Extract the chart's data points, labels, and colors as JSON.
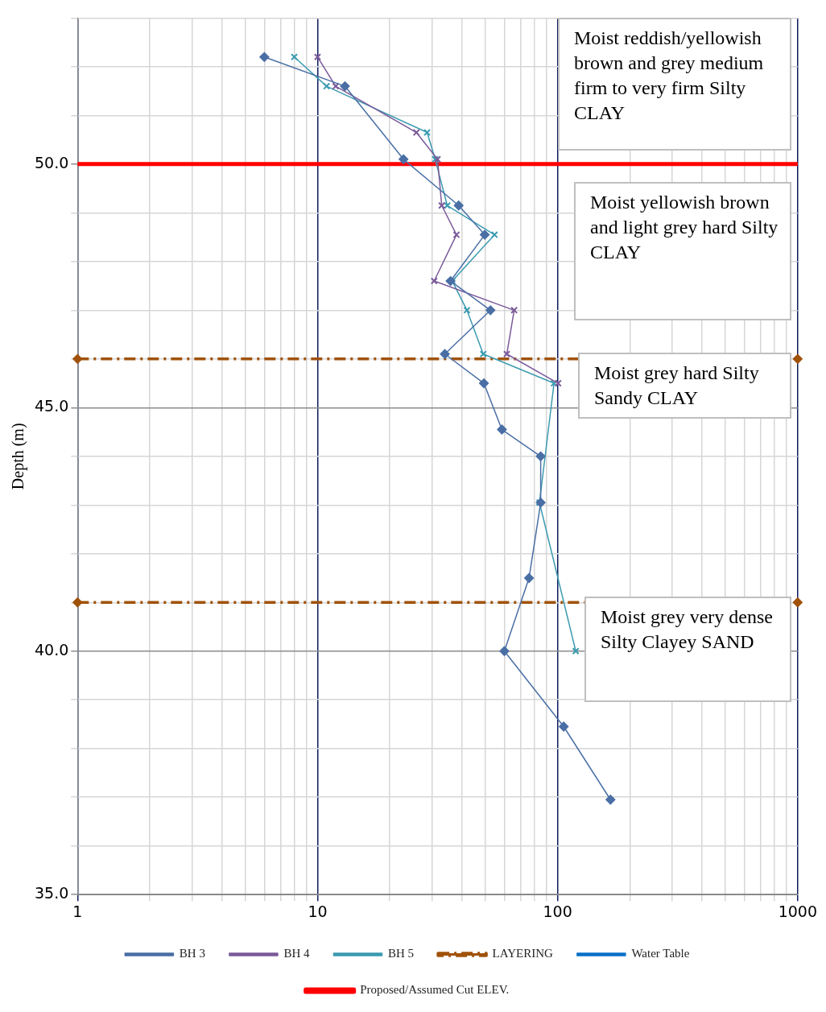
{
  "chart_data": {
    "type": "line",
    "ylabel": "Depth (m)",
    "xlim": [
      1,
      1000
    ],
    "log": "x",
    "xticks": [
      1,
      {
        "value": 2,
        "label": null
      },
      {
        "value": 3,
        "label": null
      },
      {
        "value": 4,
        "label": null
      },
      {
        "value": 5,
        "label": null
      },
      {
        "value": 6,
        "label": null
      },
      {
        "value": 7,
        "label": null
      },
      {
        "value": 8,
        "label": null
      },
      {
        "value": 9,
        "label": null
      },
      10,
      {
        "value": 20,
        "label": null
      },
      {
        "value": 30,
        "label": null
      },
      {
        "value": 40,
        "label": null
      },
      {
        "value": 50,
        "label": null
      },
      {
        "value": 60,
        "label": null
      },
      {
        "value": 70,
        "label": null
      },
      {
        "value": 80,
        "label": null
      },
      {
        "value": 90,
        "label": null
      },
      100,
      {
        "value": 200,
        "label": null
      },
      {
        "value": 300,
        "label": null
      },
      {
        "value": 400,
        "label": null
      },
      {
        "value": 500,
        "label": null
      },
      {
        "value": 600,
        "label": null
      },
      {
        "value": 700,
        "label": null
      },
      {
        "value": 800,
        "label": null
      },
      {
        "value": 900,
        "label": null
      },
      1000
    ],
    "ylim": [
      35,
      53
    ],
    "yticks": [
      {
        "value": 35,
        "label": "35.0"
      },
      {
        "value": 36,
        "label": null
      },
      {
        "value": 37,
        "label": null
      },
      {
        "value": 38,
        "label": null
      },
      {
        "value": 39,
        "label": null
      },
      {
        "value": 40,
        "label": "40.0"
      },
      {
        "value": 41,
        "label": null
      },
      {
        "value": 42,
        "label": null
      },
      {
        "value": 43,
        "label": null
      },
      {
        "value": 44,
        "label": null
      },
      {
        "value": 45,
        "label": "45.0"
      },
      {
        "value": 46,
        "label": null
      },
      {
        "value": 47,
        "label": null
      },
      {
        "value": 48,
        "label": null
      },
      {
        "value": 49,
        "label": null
      },
      {
        "value": 50,
        "label": "50.0"
      },
      {
        "value": 51,
        "label": null
      },
      {
        "value": 52,
        "label": null
      },
      {
        "value": 53,
        "label": null
      }
    ],
    "grid": true,
    "legend": "bottom",
    "annotations": [
      "Moist reddish/yellowish brown and grey medium firm to very firm Silty CLAY",
      "Moist yellowish brown and light grey hard Silty CLAY",
      "Moist grey hard Silty Sandy CLAY",
      "Moist grey very dense Silty Clayey SAND"
    ],
    "series": [
      {
        "name": "BH 3",
        "color": "#4a6fa5",
        "marker": "diamond",
        "x": [
          6,
          13,
          22.8,
          38.7,
          49.7,
          35.8,
          52.5,
          33.9,
          49.3,
          58.6,
          85,
          85,
          76,
          60,
          106,
          166
        ],
        "values": [
          52.2,
          51.6,
          50.1,
          49.15,
          48.55,
          47.6,
          47.0,
          46.1,
          45.5,
          44.55,
          44.0,
          43.05,
          41.5,
          40.0,
          38.45,
          36.95
        ]
      },
      {
        "name": "BH 4",
        "color": "#7b5a9a",
        "marker": "cross",
        "x": [
          10,
          11.9,
          25.8,
          31.6,
          32.9,
          37.9,
          30.6,
          65.9,
          61.4,
          100.5
        ],
        "values": [
          52.2,
          51.6,
          50.65,
          50.1,
          49.15,
          48.55,
          47.6,
          47.0,
          46.1,
          45.5
        ]
      },
      {
        "name": "BH 5",
        "color": "#3b9bb0",
        "marker": "cross",
        "x": [
          8,
          10.9,
          28.6,
          30.9,
          34.7,
          54.6,
          36.4,
          41.9,
          49,
          96.6,
          84,
          119
        ],
        "values": [
          52.2,
          51.6,
          50.65,
          50.1,
          49.15,
          48.55,
          47.6,
          47.0,
          46.1,
          45.5,
          43.05,
          40.0
        ]
      },
      {
        "name": "LAYERING",
        "color": "#a0520a",
        "marker": "diamond",
        "line_style": "dashed",
        "x": [
          1,
          1000
        ],
        "values": [
          46,
          46
        ]
      },
      {
        "color": "#a0520a",
        "marker": "diamond",
        "line_style": "dashed",
        "x": [
          1,
          1000
        ],
        "values": [
          41,
          41
        ]
      },
      {
        "name": "Water Table",
        "color": "#0a70c8",
        "marker": "diamond"
      },
      {
        "name": "Proposed/Assumed Cut ELEV.",
        "color": "#ff0000",
        "marker": "none",
        "x": [
          1,
          1000
        ],
        "values": [
          50,
          50
        ]
      }
    ]
  }
}
